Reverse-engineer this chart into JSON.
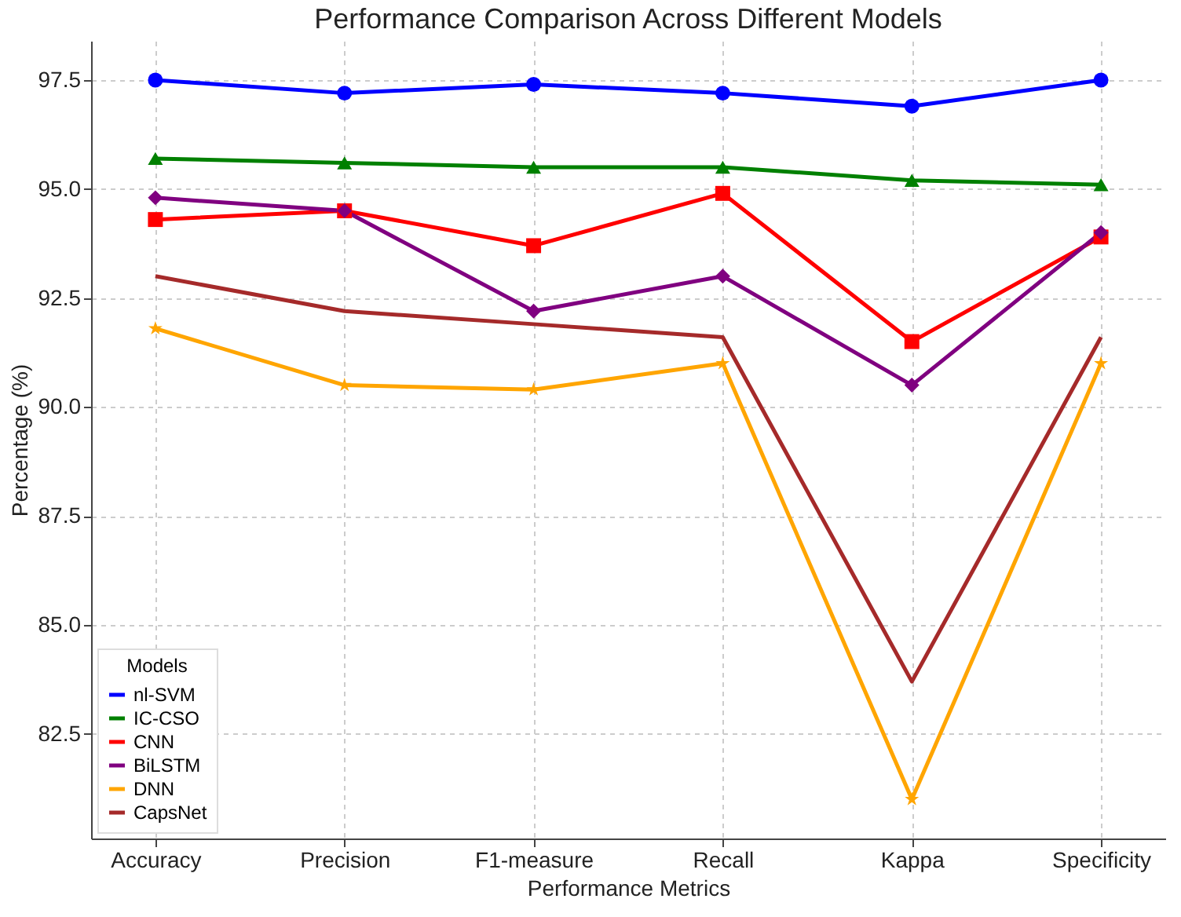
{
  "chart_data": {
    "type": "line",
    "title": "Performance Comparison Across Different Models",
    "xlabel": "Performance Metrics",
    "ylabel": "Percentage (%)",
    "legend_title": "Models",
    "categories": [
      "Accuracy",
      "Precision",
      "F1-measure",
      "Recall",
      "Kappa",
      "Specificity"
    ],
    "series": [
      {
        "name": "nl-SVM",
        "color": "#0000ff",
        "marker": "circle",
        "values": [
          97.5,
          97.2,
          97.4,
          97.2,
          96.9,
          97.5
        ]
      },
      {
        "name": "IC-CSO",
        "color": "#008000",
        "marker": "triangle",
        "values": [
          95.7,
          95.6,
          95.5,
          95.5,
          95.2,
          95.1
        ]
      },
      {
        "name": "CNN",
        "color": "#ff0000",
        "marker": "square",
        "values": [
          94.3,
          94.5,
          93.7,
          94.9,
          91.5,
          93.9
        ]
      },
      {
        "name": "BiLSTM",
        "color": "#800080",
        "marker": "diamond",
        "values": [
          94.8,
          94.5,
          92.2,
          93.0,
          90.5,
          94.0
        ]
      },
      {
        "name": "DNN",
        "color": "#ffa500",
        "marker": "star",
        "values": [
          91.8,
          90.5,
          90.4,
          91.0,
          81.0,
          91.0
        ]
      },
      {
        "name": "CapsNet",
        "color": "#a52a2a",
        "marker": "none",
        "values": [
          93.0,
          92.2,
          91.9,
          91.6,
          83.7,
          91.6
        ]
      }
    ],
    "ylim": [
      80.1,
      98.4
    ],
    "yticks": [
      82.5,
      {
        "value": 85,
        "label": "85.0"
      },
      87.5,
      {
        "value": 90,
        "label": "90.0"
      },
      92.5,
      {
        "value": 95,
        "label": "95.0"
      },
      97.5
    ],
    "grid": true,
    "legend": "bottom left",
    "line_style": "solid"
  }
}
